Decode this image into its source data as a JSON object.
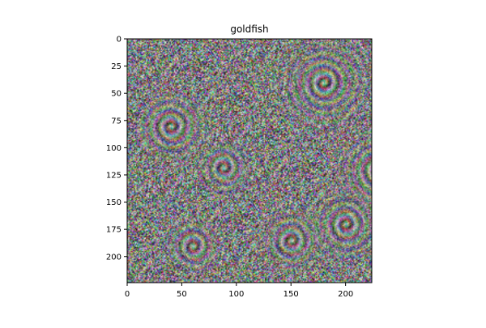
{
  "chart_data": {
    "type": "heatmap",
    "title": "goldfish",
    "xlabel": "",
    "ylabel": "",
    "image_size": [
      224,
      224
    ],
    "xlim": [
      0,
      224
    ],
    "ylim": [
      224,
      0
    ],
    "xticks": [
      0,
      50,
      100,
      150,
      200
    ],
    "yticks": [
      0,
      25,
      50,
      75,
      100,
      125,
      150,
      175,
      200
    ],
    "content": "saliency-visualization-noise",
    "grid": false,
    "legend": "none",
    "colors": {
      "frame": "#000000",
      "background": "#ffffff"
    }
  }
}
